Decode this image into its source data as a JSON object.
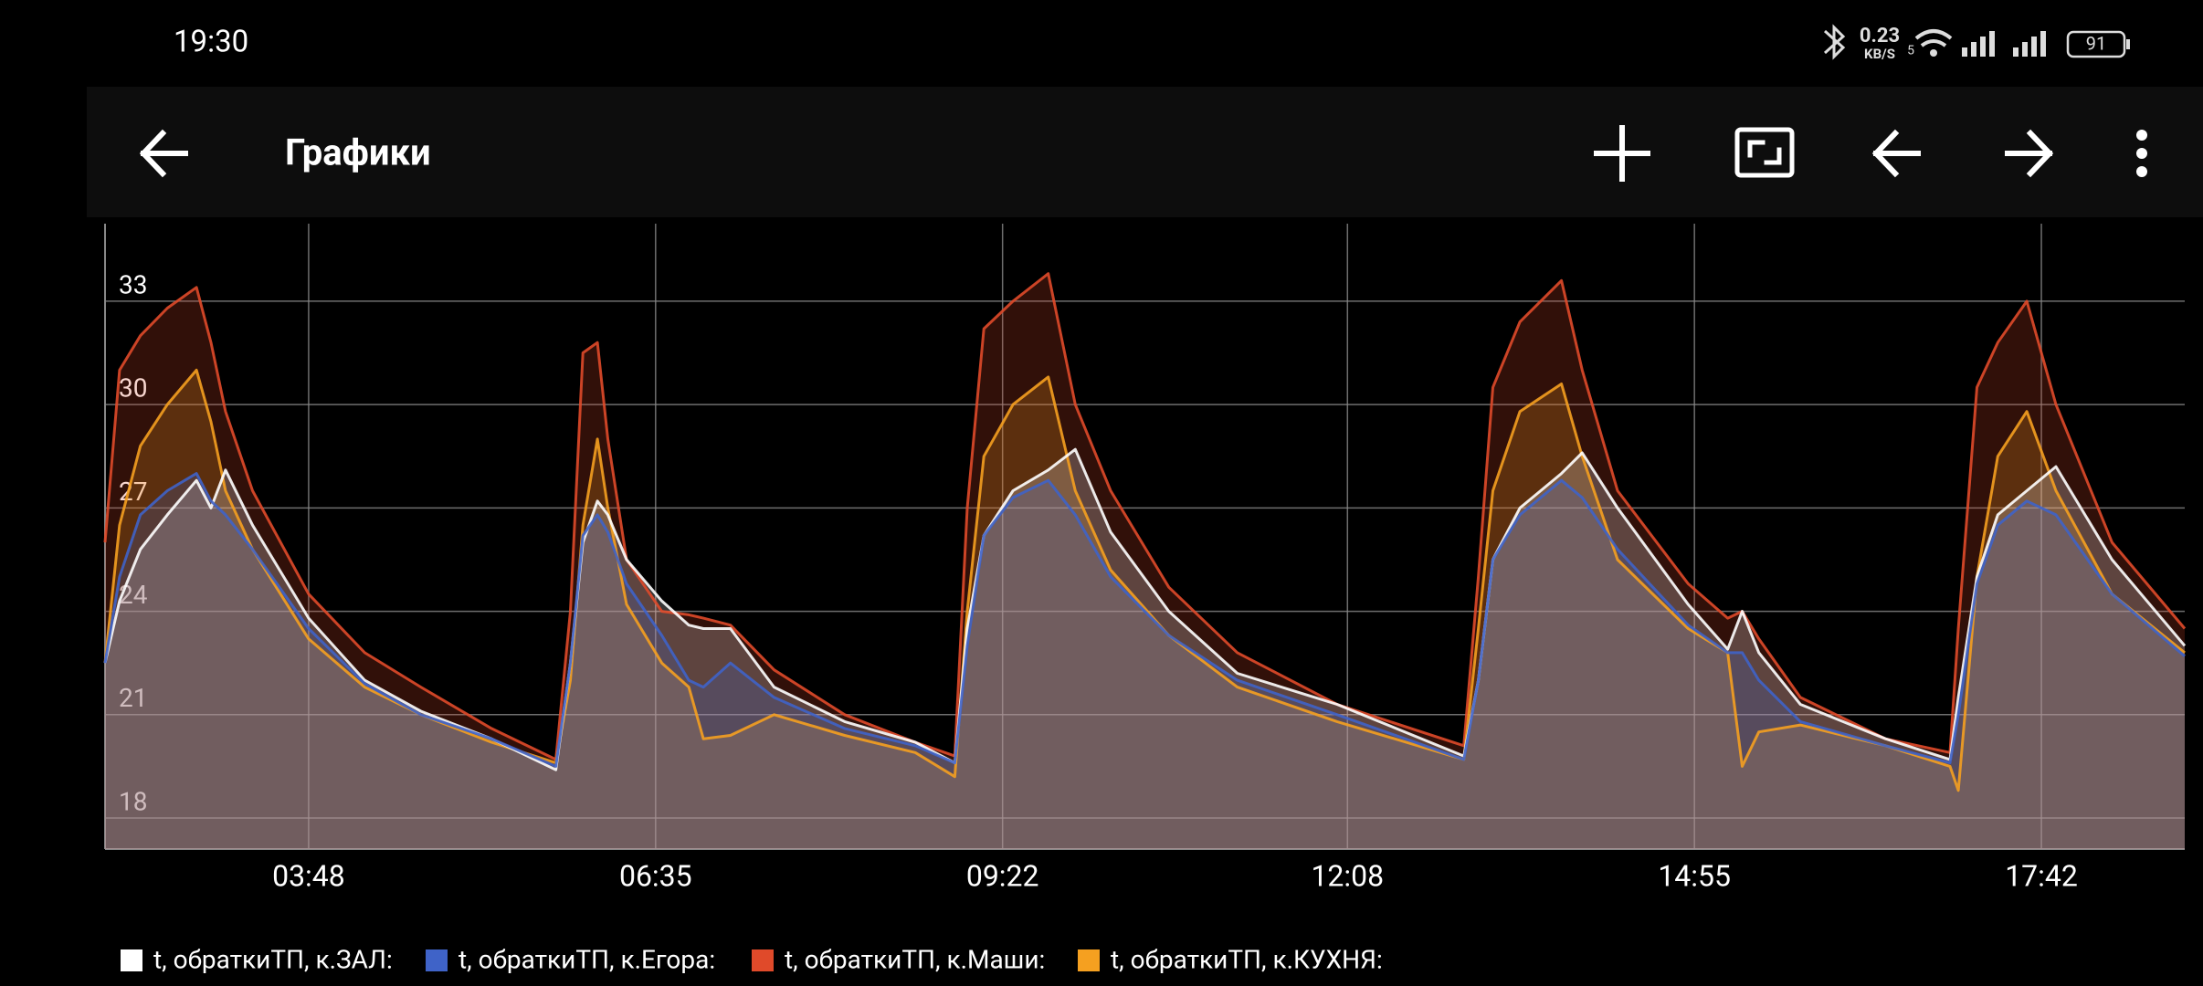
{
  "status_bar": {
    "time": "19:30",
    "speed": "0.23",
    "speed_unit": "KB/S",
    "network": "5",
    "battery": "91"
  },
  "app_bar": {
    "title": "Графики"
  },
  "chart_data": {
    "type": "line",
    "x": [
      130,
      137,
      147,
      160,
      174,
      181,
      188,
      201,
      228,
      255,
      282,
      316,
      347,
      354,
      360,
      367,
      372,
      381,
      398,
      411,
      418,
      431,
      452,
      486,
      520,
      539,
      545,
      553,
      567,
      584,
      597,
      614,
      642,
      675,
      723,
      784,
      791,
      798,
      811,
      831,
      841,
      858,
      892,
      911,
      918,
      926,
      946,
      987,
      1018,
      1022,
      1031,
      1041,
      1055,
      1069,
      1096,
      1131
    ],
    "xlim": [
      130,
      1131
    ],
    "xticks": [
      {
        "value": 228,
        "label": "03:48"
      },
      {
        "value": 395,
        "label": "06:35"
      },
      {
        "value": 562,
        "label": "09:22"
      },
      {
        "value": 728,
        "label": "12:08"
      },
      {
        "value": 895,
        "label": "14:55"
      },
      {
        "value": 1062,
        "label": "17:42"
      }
    ],
    "ylim": [
      17.1,
      35.25
    ],
    "yticks": [
      18,
      21,
      24,
      27,
      30,
      33
    ],
    "grid": true,
    "series": [
      {
        "name": "t, обраткиТП, к.ЗАЛ:",
        "color": "#ffffff",
        "values": [
          22.5,
          24.3,
          25.8,
          26.8,
          27.8,
          27.0,
          28.1,
          26.5,
          23.8,
          22.0,
          21.1,
          20.3,
          19.4,
          22.5,
          26.0,
          27.2,
          26.8,
          25.5,
          24.3,
          23.6,
          23.5,
          23.5,
          21.8,
          20.8,
          20.2,
          19.6,
          23.5,
          26.2,
          27.5,
          28.1,
          28.7,
          26.3,
          24.0,
          22.2,
          21.3,
          19.8,
          22.0,
          25.5,
          27.0,
          28.0,
          28.6,
          27.0,
          24.2,
          22.9,
          24.0,
          22.8,
          21.3,
          20.3,
          19.7,
          21.5,
          25.0,
          26.8,
          27.5,
          28.2,
          25.5,
          23.0
        ]
      },
      {
        "name": "t, обраткиТП, к.Егора:",
        "color": "#3f63c8",
        "values": [
          22.5,
          25.0,
          26.8,
          27.5,
          28.0,
          27.2,
          26.8,
          25.8,
          23.5,
          21.9,
          21.0,
          20.3,
          19.5,
          22.5,
          26.2,
          26.8,
          26.3,
          24.8,
          23.3,
          22.0,
          21.8,
          22.5,
          21.5,
          20.6,
          20.1,
          19.6,
          23.0,
          26.2,
          27.3,
          27.8,
          26.8,
          25.0,
          23.3,
          22.0,
          21.0,
          19.7,
          22.0,
          25.5,
          26.8,
          27.8,
          27.3,
          25.8,
          23.6,
          22.8,
          22.8,
          22.0,
          20.8,
          20.1,
          19.6,
          21.0,
          24.8,
          26.5,
          27.2,
          26.8,
          24.5,
          22.7
        ]
      },
      {
        "name": "t, обраткиТП, к.Маши:",
        "color": "#e04a2a",
        "values": [
          26.0,
          31.0,
          32.0,
          32.8,
          33.4,
          31.8,
          29.8,
          27.5,
          24.5,
          22.8,
          21.8,
          20.6,
          19.7,
          24.0,
          31.5,
          31.8,
          29.0,
          25.5,
          24.0,
          23.9,
          23.8,
          23.6,
          22.3,
          21.0,
          20.2,
          19.8,
          27.0,
          32.2,
          33.0,
          33.8,
          30.0,
          27.5,
          24.7,
          22.8,
          21.3,
          20.1,
          25.0,
          30.5,
          32.4,
          33.6,
          31.0,
          27.5,
          24.8,
          23.8,
          24.0,
          23.2,
          21.5,
          20.3,
          19.9,
          23.5,
          30.5,
          31.8,
          33.0,
          30.0,
          26.0,
          23.5
        ]
      },
      {
        "name": "t, обраткиТП, к.КУХНЯ:",
        "color": "#f5a020",
        "values": [
          22.5,
          26.5,
          28.8,
          30.0,
          31.0,
          29.5,
          27.5,
          25.8,
          23.2,
          21.8,
          21.0,
          20.2,
          19.6,
          22.0,
          26.5,
          29.0,
          27.0,
          24.2,
          22.5,
          21.8,
          20.3,
          20.4,
          21.0,
          20.4,
          19.9,
          19.2,
          24.0,
          28.5,
          30.0,
          30.8,
          27.5,
          25.2,
          23.3,
          21.8,
          20.8,
          19.7,
          23.5,
          27.5,
          29.8,
          30.6,
          28.5,
          25.5,
          23.5,
          22.8,
          19.5,
          20.5,
          20.7,
          20.1,
          19.5,
          18.8,
          25.0,
          28.5,
          29.8,
          27.5,
          24.5,
          22.8
        ]
      }
    ]
  }
}
